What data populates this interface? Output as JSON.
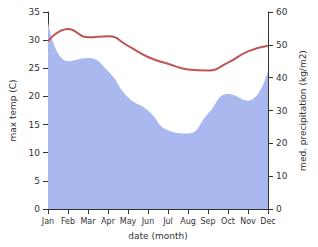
{
  "chart_data": {
    "type": "line",
    "x_label": "date (month)",
    "y_label": "max temp (C)",
    "y2_label": "med. precipitation (kg/m2)",
    "categories": [
      "Jan",
      "Feb",
      "Mar",
      "Apr",
      "May",
      "Jun",
      "Jul",
      "Aug",
      "Sep",
      "Oct",
      "Nov",
      "Dec"
    ],
    "ylim": [
      0,
      35
    ],
    "yticks": [
      0,
      5,
      10,
      15,
      20,
      25,
      30,
      35
    ],
    "y2lim": [
      0,
      60
    ],
    "y2ticks": [
      0,
      10,
      20,
      30,
      40,
      50,
      60
    ],
    "grid": false,
    "series": [
      {
        "name": "med. precipitation",
        "type": "area",
        "axis": "y2",
        "color": "#aab8f0",
        "values": [
          57,
          45,
          46,
          42,
          34,
          30,
          24,
          23,
          29,
          35,
          33,
          42
        ]
      },
      {
        "name": "max temp",
        "type": "line",
        "color": "#c05454",
        "values": [
          29.8,
          32,
          30.5,
          30.7,
          29,
          27,
          25.8,
          24.8,
          24.6,
          26,
          28,
          29
        ]
      }
    ]
  }
}
